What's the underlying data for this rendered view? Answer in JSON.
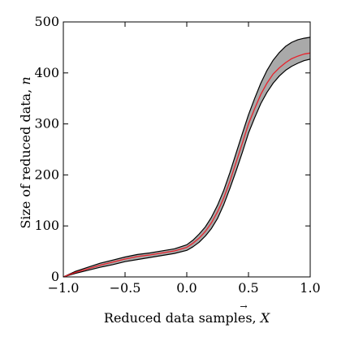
{
  "chart_data": {
    "type": "area",
    "title": "",
    "xlabel": "Reduced data samples, X",
    "xlabel_parts": {
      "text": "Reduced data samples, ",
      "symbol": "X"
    },
    "ylabel": "Size of reduced data, n",
    "ylabel_parts": {
      "text": "Size of reduced data, ",
      "symbol": "n"
    },
    "xlim": [
      -1.0,
      1.0
    ],
    "ylim": [
      0,
      500
    ],
    "xticks": [
      -1.0,
      -0.5,
      0.0,
      0.5,
      1.0
    ],
    "xtick_labels": [
      "−1.0",
      "−0.5",
      "0.0",
      "0.5",
      "1.0"
    ],
    "yticks": [
      0,
      100,
      200,
      300,
      400,
      500
    ],
    "ytick_labels": [
      "0",
      "100",
      "200",
      "300",
      "400",
      "500"
    ],
    "grid": false,
    "legend": "none",
    "x": [
      -1.0,
      -0.9,
      -0.8,
      -0.7,
      -0.6,
      -0.5,
      -0.4,
      -0.3,
      -0.2,
      -0.1,
      0.0,
      0.05,
      0.1,
      0.15,
      0.2,
      0.25,
      0.3,
      0.35,
      0.4,
      0.45,
      0.5,
      0.55,
      0.6,
      0.65,
      0.7,
      0.75,
      0.8,
      0.85,
      0.9,
      0.95,
      1.0
    ],
    "series": [
      {
        "role": "mean",
        "color": "#e8212b",
        "values": [
          0,
          9,
          16,
          23,
          29,
          35,
          40,
          43,
          47,
          51,
          58,
          66,
          76,
          89,
          106,
          128,
          155,
          188,
          225,
          262,
          300,
          330,
          358,
          380,
          398,
          410,
          420,
          428,
          433,
          437,
          439
        ]
      },
      {
        "role": "upper-bound",
        "color": "#000000",
        "values": [
          0,
          11,
          19,
          27,
          33,
          39,
          44,
          47,
          51,
          55,
          63,
          72,
          84,
          98,
          117,
          141,
          170,
          205,
          243,
          281,
          318,
          350,
          380,
          405,
          425,
          440,
          452,
          460,
          465,
          468,
          470
        ]
      },
      {
        "role": "lower-bound",
        "color": "#000000",
        "values": [
          0,
          7,
          13,
          19,
          24,
          30,
          34,
          38,
          42,
          46,
          52,
          59,
          68,
          80,
          95,
          115,
          142,
          174,
          208,
          244,
          282,
          312,
          340,
          362,
          380,
          394,
          405,
          413,
          419,
          424,
          427
        ]
      }
    ],
    "band_fill": "#a9a9a9",
    "frame_color": "#000000"
  }
}
